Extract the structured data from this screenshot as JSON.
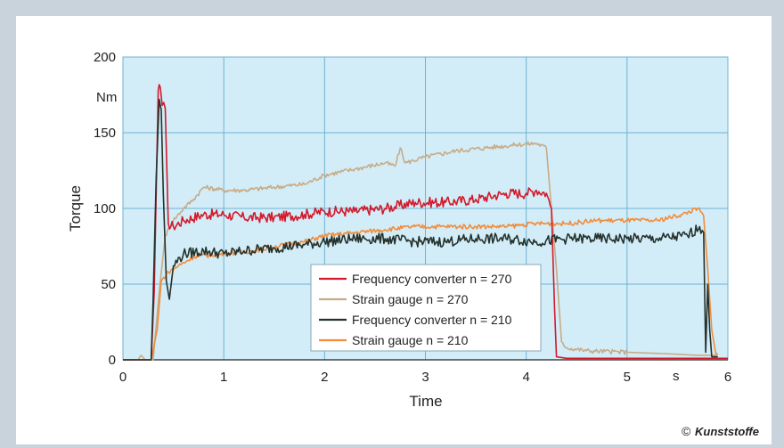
{
  "chart_data": {
    "type": "line",
    "xlabel": "Time",
    "ylabel": "Torque",
    "x_unit": "s",
    "y_unit": "Nm",
    "xlim": [
      0,
      6
    ],
    "ylim": [
      0,
      200
    ],
    "xticks": [
      "0",
      "1",
      "2",
      "3",
      "4",
      "5",
      "6"
    ],
    "yticks": [
      "0",
      "50",
      "100",
      "150",
      "200"
    ],
    "grid": true,
    "legend_position": "bottom-center",
    "series": [
      {
        "name": "Frequency converter n = 270",
        "color": "#d4192a",
        "points": [
          [
            0,
            0
          ],
          [
            0.28,
            0
          ],
          [
            0.31,
            45
          ],
          [
            0.35,
            178
          ],
          [
            0.37,
            180
          ],
          [
            0.39,
            168
          ],
          [
            0.42,
            166
          ],
          [
            0.45,
            90
          ],
          [
            0.5,
            88
          ],
          [
            0.6,
            92
          ],
          [
            0.8,
            96
          ],
          [
            1.0,
            96
          ],
          [
            1.2,
            94
          ],
          [
            1.5,
            94
          ],
          [
            1.8,
            96
          ],
          [
            2.0,
            98
          ],
          [
            2.3,
            98
          ],
          [
            2.6,
            100
          ],
          [
            2.9,
            104
          ],
          [
            3.2,
            104
          ],
          [
            3.5,
            106
          ],
          [
            3.8,
            110
          ],
          [
            4.0,
            110
          ],
          [
            4.1,
            112
          ],
          [
            4.2,
            110
          ],
          [
            4.25,
            100
          ],
          [
            4.28,
            35
          ],
          [
            4.3,
            2
          ],
          [
            4.4,
            1
          ],
          [
            6.0,
            1
          ]
        ]
      },
      {
        "name": "Strain gauge n = 270",
        "color": "#c8ab86",
        "points": [
          [
            0,
            0
          ],
          [
            0.15,
            0
          ],
          [
            0.18,
            3
          ],
          [
            0.22,
            0
          ],
          [
            0.3,
            0
          ],
          [
            0.36,
            45
          ],
          [
            0.42,
            82
          ],
          [
            0.5,
            92
          ],
          [
            0.6,
            100
          ],
          [
            0.7,
            106
          ],
          [
            0.8,
            114
          ],
          [
            1.0,
            112
          ],
          [
            1.2,
            112
          ],
          [
            1.5,
            114
          ],
          [
            1.8,
            116
          ],
          [
            2.0,
            122
          ],
          [
            2.3,
            126
          ],
          [
            2.6,
            130
          ],
          [
            2.7,
            128
          ],
          [
            2.75,
            140
          ],
          [
            2.8,
            130
          ],
          [
            3.0,
            134
          ],
          [
            3.3,
            138
          ],
          [
            3.6,
            140
          ],
          [
            3.9,
            142
          ],
          [
            4.1,
            143
          ],
          [
            4.2,
            140
          ],
          [
            4.3,
            60
          ],
          [
            4.35,
            12
          ],
          [
            4.4,
            8
          ],
          [
            4.6,
            6
          ],
          [
            5.0,
            5
          ],
          [
            5.4,
            4
          ],
          [
            5.7,
            3
          ],
          [
            5.9,
            3
          ]
        ]
      },
      {
        "name": "Frequency converter n = 210",
        "color": "#26322c",
        "points": [
          [
            0,
            0
          ],
          [
            0.28,
            0
          ],
          [
            0.3,
            40
          ],
          [
            0.33,
            120
          ],
          [
            0.36,
            172
          ],
          [
            0.38,
            165
          ],
          [
            0.4,
            110
          ],
          [
            0.43,
            52
          ],
          [
            0.46,
            40
          ],
          [
            0.5,
            62
          ],
          [
            0.6,
            70
          ],
          [
            0.8,
            72
          ],
          [
            1.0,
            70
          ],
          [
            1.2,
            72
          ],
          [
            1.5,
            74
          ],
          [
            1.8,
            76
          ],
          [
            2.0,
            78
          ],
          [
            2.3,
            80
          ],
          [
            2.6,
            80
          ],
          [
            2.9,
            78
          ],
          [
            3.2,
            78
          ],
          [
            3.5,
            80
          ],
          [
            3.8,
            80
          ],
          [
            4.1,
            78
          ],
          [
            4.4,
            80
          ],
          [
            4.7,
            80
          ],
          [
            5.0,
            80
          ],
          [
            5.3,
            80
          ],
          [
            5.6,
            82
          ],
          [
            5.72,
            88
          ],
          [
            5.76,
            84
          ],
          [
            5.78,
            5
          ],
          [
            5.8,
            50
          ],
          [
            5.82,
            20
          ],
          [
            5.84,
            2
          ],
          [
            5.9,
            2
          ]
        ]
      },
      {
        "name": "Strain gauge n = 210",
        "color": "#f28c3b",
        "points": [
          [
            0,
            0
          ],
          [
            0.28,
            0
          ],
          [
            0.34,
            20
          ],
          [
            0.38,
            52
          ],
          [
            0.45,
            58
          ],
          [
            0.55,
            62
          ],
          [
            0.7,
            68
          ],
          [
            1.0,
            70
          ],
          [
            1.3,
            72
          ],
          [
            1.6,
            76
          ],
          [
            1.8,
            78
          ],
          [
            2.0,
            82
          ],
          [
            2.3,
            84
          ],
          [
            2.6,
            86
          ],
          [
            2.9,
            88
          ],
          [
            3.2,
            88
          ],
          [
            3.5,
            88
          ],
          [
            3.8,
            88
          ],
          [
            4.1,
            90
          ],
          [
            4.4,
            90
          ],
          [
            4.7,
            92
          ],
          [
            5.0,
            92
          ],
          [
            5.3,
            92
          ],
          [
            5.55,
            96
          ],
          [
            5.7,
            100
          ],
          [
            5.76,
            95
          ],
          [
            5.8,
            60
          ],
          [
            5.84,
            20
          ],
          [
            5.88,
            4
          ],
          [
            5.9,
            4
          ]
        ]
      }
    ]
  },
  "credit": {
    "copyright": "©",
    "publisher": "Kunststoffe"
  }
}
